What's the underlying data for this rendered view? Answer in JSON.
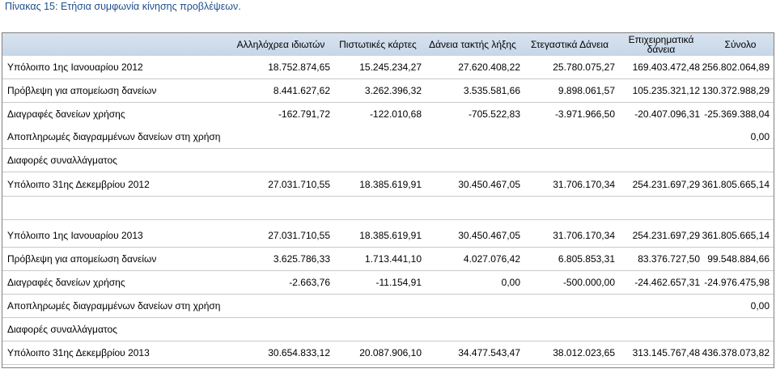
{
  "caption": "Πίνακας 15: Ετήσια συμφωνία κίνησης προβλέψεων.",
  "columns": [
    "Αλληλόχρεα ιδιωτών",
    "Πιστωτικές κάρτες",
    "Δάνεια τακτής λήξης",
    "Στεγαστικά Δάνεια",
    "Επιχειρηματικά δάνεια",
    "Σύνολο"
  ],
  "rows": [
    {
      "label": "Υπόλοιπο 1ης Ιανουαρίου 2012",
      "values": [
        "18.752.874,65",
        "15.245.234,27",
        "27.620.408,22",
        "25.780.075,27",
        "169.403.472,48",
        "256.802.064,89"
      ]
    },
    {
      "label": "Πρόβλεψη για απομείωση δανείων",
      "values": [
        "8.441.627,62",
        "3.262.396,32",
        "3.535.581,66",
        "9.898.061,57",
        "105.235.321,12",
        "130.372.988,29"
      ]
    },
    {
      "label": "Διαγραφές δανείων χρήσης",
      "values": [
        "-162.791,72",
        "-122.010,68",
        "-705.522,83",
        "-3.971.966,50",
        "-20.407.096,31",
        "-25.369.388,04"
      ]
    },
    {
      "label": "Αποπληρωμές διαγραμμένων δανείων στη χρήση",
      "values": [
        "",
        "",
        "",
        "",
        "",
        "0,00"
      ]
    },
    {
      "label": "Διαφορές συναλλάγματος",
      "values": [
        "",
        "",
        "",
        "",
        "",
        ""
      ]
    },
    {
      "label": "Υπόλοιπο 31ης Δεκεμβρίου 2012",
      "values": [
        "27.031.710,55",
        "18.385.619,91",
        "30.450.467,05",
        "31.706.170,34",
        "254.231.697,29",
        "361.805.665,14"
      ]
    },
    {
      "label": "",
      "values": [
        "",
        "",
        "",
        "",
        "",
        ""
      ]
    },
    {
      "label": "Υπόλοιπο 1ης Ιανουαρίου 2013",
      "values": [
        "27.031.710,55",
        "18.385.619,91",
        "30.450.467,05",
        "31.706.170,34",
        "254.231.697,29",
        "361.805.665,14"
      ]
    },
    {
      "label": "Πρόβλεψη για απομείωση δανείων",
      "values": [
        "3.625.786,33",
        "1.713.441,10",
        "4.027.076,42",
        "6.805.853,31",
        "83.376.727,50",
        "99.548.884,66"
      ]
    },
    {
      "label": "Διαγραφές δανείων χρήσης",
      "values": [
        "-2.663,76",
        "-11.154,91",
        "0,00",
        "-500.000,00",
        "-24.462.657,31",
        "-24.976.475,98"
      ]
    },
    {
      "label": "Αποπληρωμές διαγραμμένων δανείων στη χρήση",
      "values": [
        "",
        "",
        "",
        "",
        "",
        "0,00"
      ]
    },
    {
      "label": "Διαφορές συναλλάγματος",
      "values": [
        "",
        "",
        "",
        "",
        "",
        ""
      ]
    },
    {
      "label": "Υπόλοιπο 31ης Δεκεμβρίου 2013",
      "values": [
        "30.654.833,12",
        "20.087.906,10",
        "34.477.543,47",
        "38.012.023,65",
        "313.145.767,48",
        "436.378.073,82"
      ]
    }
  ]
}
